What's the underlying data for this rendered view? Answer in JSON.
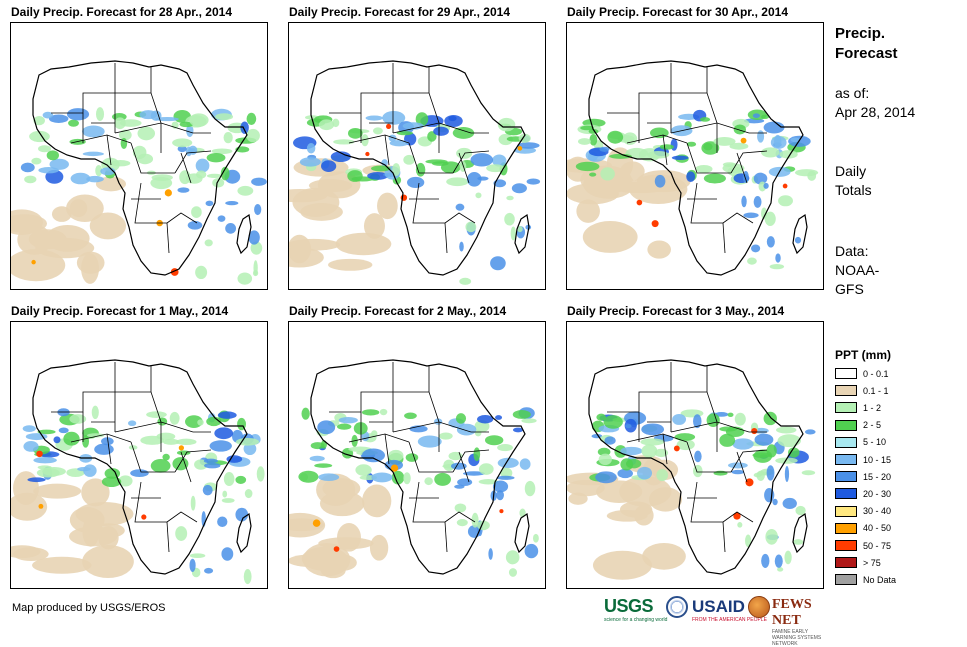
{
  "panels": [
    {
      "title": "Daily Precip. Forecast for 28 Apr., 2014"
    },
    {
      "title": "Daily Precip. Forecast for 29 Apr., 2014"
    },
    {
      "title": "Daily Precip. Forecast for 30 Apr., 2014"
    },
    {
      "title": "Daily Precip. Forecast for 1 May., 2014"
    },
    {
      "title": "Daily Precip. Forecast for 2 May., 2014"
    },
    {
      "title": "Daily Precip. Forecast for 3 May., 2014"
    }
  ],
  "sidebar": {
    "title_line1": "Precip.",
    "title_line2": "Forecast",
    "asof_label": "as of:",
    "asof_date": "Apr 28, 2014",
    "totals_line1": "Daily",
    "totals_line2": "Totals",
    "data_label": "Data:",
    "data_source_line1": "NOAA-",
    "data_source_line2": "GFS"
  },
  "legend": {
    "title": "PPT (mm)",
    "items": [
      {
        "label": "0 - 0.1",
        "color": "#ffffff"
      },
      {
        "label": "0.1 - 1",
        "color": "#e8d4b4"
      },
      {
        "label": "1 - 2",
        "color": "#b4f0b4"
      },
      {
        "label": "2 - 5",
        "color": "#50d050"
      },
      {
        "label": "5 - 10",
        "color": "#a8e8f0"
      },
      {
        "label": "10 - 15",
        "color": "#78b8f0"
      },
      {
        "label": "15 - 20",
        "color": "#4a90e8"
      },
      {
        "label": "20 - 30",
        "color": "#1e5ae0"
      },
      {
        "label": "30 - 40",
        "color": "#ffe880"
      },
      {
        "label": "40 - 50",
        "color": "#ffa000"
      },
      {
        "label": "50 - 75",
        "color": "#ff3c00"
      },
      {
        "label": "> 75",
        "color": "#b01818"
      },
      {
        "label": "No Data",
        "color": "#a0a0a0"
      }
    ]
  },
  "credit": "Map produced by USGS/EROS",
  "logos": {
    "usgs": "USGS",
    "usgs_tagline": "science for a changing world",
    "usaid": "USAID",
    "usaid_tagline": "FROM THE AMERICAN PEOPLE",
    "fews": "FEWS NET",
    "fews_tagline": "FAMINE EARLY WARNING SYSTEMS NETWORK"
  }
}
